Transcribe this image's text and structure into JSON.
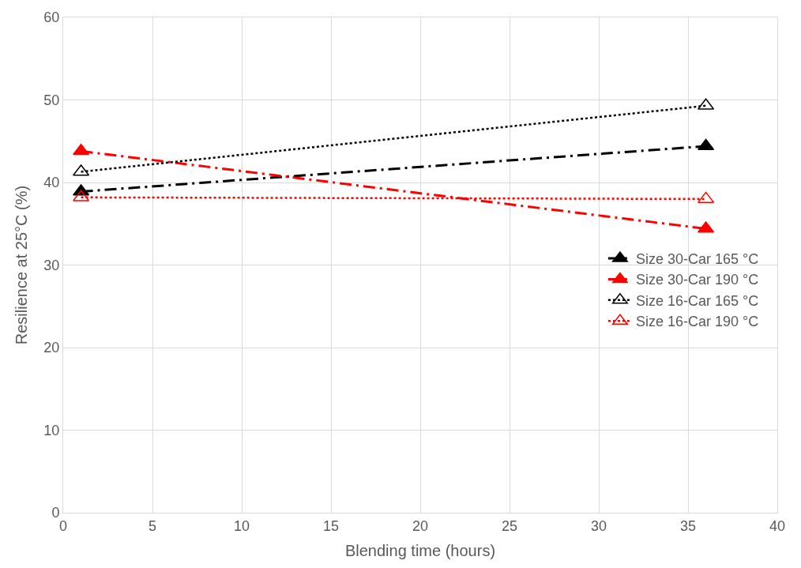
{
  "chart_data": {
    "type": "line",
    "xlabel": "Blending time (hours)",
    "ylabel": "Resilience at 25°C (%)",
    "x": [
      1,
      36
    ],
    "series": [
      {
        "name": "Size 30-Car 165 °C",
        "color": "#000000",
        "values": [
          38.9,
          44.4
        ],
        "marker": "triangle",
        "line_style": "dashed"
      },
      {
        "name": "Size 30-Car 190 °C",
        "color": "#ff0000",
        "values": [
          43.8,
          34.4
        ],
        "marker": "triangle",
        "line_style": "dashed"
      },
      {
        "name": "Size 16-Car 165 °C",
        "color": "#000000",
        "values": [
          41.3,
          49.3
        ],
        "marker": "triangle-open",
        "line_style": "dotted"
      },
      {
        "name": "Size 16-Car 190 °C",
        "color": "#ff0000",
        "values": [
          38.2,
          38.0
        ],
        "marker": "triangle-open",
        "line_style": "dotted"
      }
    ],
    "xlim": [
      0,
      40
    ],
    "xticks": [
      0,
      5,
      10,
      15,
      20,
      25,
      30,
      35,
      40
    ],
    "ylim": [
      0,
      60
    ],
    "yticks": [
      0,
      10,
      20,
      30,
      40,
      50,
      60
    ],
    "grid": true,
    "legend": "right"
  }
}
